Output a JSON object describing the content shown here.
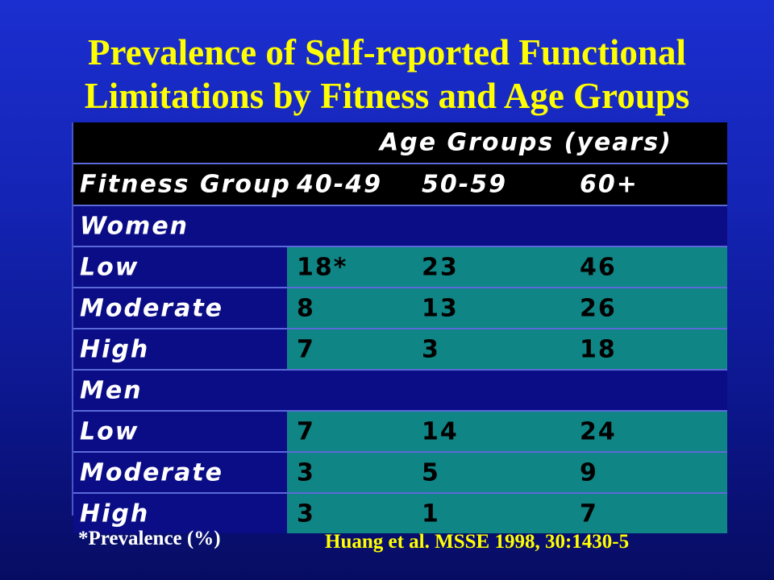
{
  "title": {
    "line1": "Prevalence of Self-reported Functional",
    "line2": "Limitations by Fitness and Age Groups"
  },
  "chart_data": {
    "type": "table",
    "header": {
      "group_label": "Age Groups (years)",
      "row_label": "Fitness Group",
      "columns": [
        "40-49",
        "50-59",
        "60+"
      ]
    },
    "sections": [
      {
        "name": "Women",
        "rows": [
          {
            "label": "Low",
            "values": [
              "18*",
              "23",
              "46"
            ]
          },
          {
            "label": "Moderate",
            "values": [
              "8",
              "13",
              "26"
            ]
          },
          {
            "label": "High",
            "values": [
              "7",
              "3",
              "18"
            ]
          }
        ]
      },
      {
        "name": "Men",
        "rows": [
          {
            "label": "Low",
            "values": [
              "7",
              "14",
              "24"
            ]
          },
          {
            "label": "Moderate",
            "values": [
              "3",
              "5",
              "9"
            ]
          },
          {
            "label": "High",
            "values": [
              "3",
              "1",
              "7"
            ]
          }
        ]
      }
    ]
  },
  "footnote": "*Prevalence (%)",
  "citation": "Huang et al. MSSE 1998, 30:1430-5",
  "colors": {
    "title": "#ffff00",
    "background": "#1424b4",
    "header_row": "#000000",
    "section_row": "#0b0d86",
    "data_cell": "#0f8585",
    "citation": "#ffff00"
  }
}
